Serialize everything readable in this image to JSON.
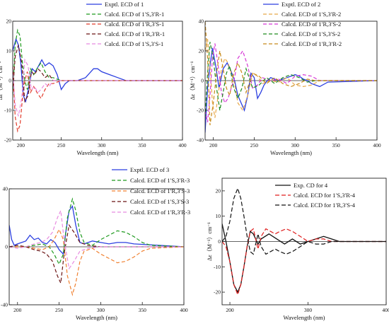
{
  "chart_data": [
    {
      "type": "line",
      "panel": "1",
      "xlabel": "Wavelength (nm)",
      "ylabel": "Δε（M⁻¹）cm⁻¹",
      "xlim": [
        190,
        400
      ],
      "ylim": [
        -20,
        20
      ],
      "xticks": [
        200,
        250,
        300,
        350,
        400
      ],
      "yticks": [
        -20,
        -10,
        0,
        10,
        20
      ],
      "legend_position": "top-right",
      "series": [
        {
          "name": "Exptl. ECD of 1",
          "color": "#2b3fe0",
          "dash": "solid",
          "x": [
            190,
            194,
            197,
            200,
            203,
            206,
            210,
            214,
            218,
            222,
            226,
            230,
            235,
            240,
            245,
            250,
            255,
            260,
            270,
            280,
            290,
            295,
            300,
            310,
            320,
            330,
            340,
            400
          ],
          "y": [
            10,
            14,
            12,
            6,
            -5,
            -7,
            -2,
            4,
            3,
            5,
            7,
            5,
            6,
            5,
            2,
            -3,
            -1,
            0,
            0,
            1,
            4,
            4,
            3,
            2,
            1,
            0,
            0,
            0
          ]
        },
        {
          "name": "Calcd. ECD of 1′S,3′R-1",
          "color": "#1e9a1e",
          "dash": "5,3",
          "x": [
            190,
            193,
            196,
            199,
            202,
            205,
            208,
            212,
            216,
            220,
            225,
            230,
            235,
            240,
            250,
            260,
            280,
            300,
            350,
            400
          ],
          "y": [
            -5,
            12,
            17,
            15,
            6,
            0,
            -3,
            4,
            2,
            4,
            6,
            3,
            1,
            1,
            0,
            0,
            0,
            0,
            0,
            0
          ]
        },
        {
          "name": "Calcd. ECD of 1′R,3′S-1",
          "color": "#e23b2b",
          "dash": "5,3",
          "x": [
            190,
            193,
            196,
            199,
            202,
            205,
            208,
            212,
            216,
            220,
            225,
            230,
            235,
            240,
            250,
            260,
            280,
            300,
            350,
            400
          ],
          "y": [
            5,
            -12,
            -17,
            -15,
            -6,
            0,
            3,
            -4,
            -2,
            -4,
            -6,
            -3,
            -1,
            -1,
            0,
            0,
            0,
            0,
            0,
            0
          ]
        },
        {
          "name": "Calcd. ECD of 1′R,3′R-1",
          "color": "#6b1414",
          "dash": "5,3",
          "x": [
            190,
            193,
            197,
            201,
            205,
            209,
            213,
            217,
            221,
            225,
            230,
            235,
            240,
            250,
            260,
            300,
            400
          ],
          "y": [
            -4,
            8,
            12,
            6,
            -7,
            -5,
            3,
            2,
            4,
            3,
            1,
            2,
            0,
            0,
            0,
            0,
            0
          ]
        },
        {
          "name": "Calcd. ECD of 1′S,3′S-1",
          "color": "#e88be0",
          "dash": "5,3",
          "x": [
            190,
            193,
            197,
            201,
            205,
            209,
            213,
            217,
            221,
            225,
            230,
            235,
            240,
            250,
            260,
            300,
            400
          ],
          "y": [
            4,
            -8,
            -12,
            -6,
            7,
            5,
            -3,
            -2,
            -4,
            -3,
            -1,
            -2,
            0,
            0,
            0,
            0,
            0
          ]
        }
      ]
    },
    {
      "type": "line",
      "panel": "2",
      "xlabel": "Wavelength (nm)",
      "ylabel": "Δε（M⁻¹）cm⁻¹",
      "xlim": [
        190,
        400
      ],
      "ylim": [
        -40,
        40
      ],
      "xticks": [
        200,
        250,
        300,
        350,
        400
      ],
      "yticks": [
        -40,
        -20,
        0,
        20,
        40
      ],
      "legend_position": "top-right",
      "series": [
        {
          "name": "Exptl. ECD of 2",
          "color": "#2b3fe0",
          "dash": "solid",
          "x": [
            190,
            193,
            196,
            199,
            203,
            207,
            212,
            217,
            222,
            226,
            230,
            234,
            238,
            242,
            246,
            250,
            254,
            258,
            262,
            266,
            270,
            280,
            290,
            300,
            305,
            310,
            315,
            320,
            330,
            340,
            400
          ],
          "y": [
            -35,
            -5,
            10,
            22,
            10,
            -5,
            8,
            12,
            6,
            0,
            -10,
            -15,
            -20,
            -10,
            5,
            2,
            -12,
            -8,
            -3,
            0,
            2,
            0,
            2,
            4,
            3,
            1,
            0,
            -2,
            -4,
            -1,
            0
          ]
        },
        {
          "name": "Calcd. ECD of 1′S,3′R-2",
          "color": "#e8a848",
          "dash": "5,3",
          "x": [
            190,
            193,
            196,
            199,
            202,
            206,
            210,
            214,
            218,
            222,
            226,
            230,
            236,
            242,
            248,
            254,
            260,
            270,
            280,
            290,
            300,
            310,
            320,
            330,
            400
          ],
          "y": [
            20,
            28,
            10,
            -15,
            -25,
            -10,
            8,
            15,
            12,
            5,
            -2,
            -15,
            -20,
            -10,
            5,
            3,
            -2,
            0,
            -1,
            2,
            -3,
            -4,
            -3,
            0,
            0
          ]
        },
        {
          "name": "Calcd. ECD of 1′R,3′S-2",
          "color": "#d638d6",
          "dash": "5,3",
          "x": [
            190,
            193,
            196,
            199,
            202,
            206,
            210,
            214,
            218,
            222,
            226,
            230,
            236,
            242,
            248,
            254,
            260,
            270,
            280,
            290,
            300,
            310,
            320,
            330,
            400
          ],
          "y": [
            -20,
            -28,
            -10,
            15,
            25,
            10,
            -8,
            -15,
            -12,
            -5,
            2,
            15,
            20,
            10,
            -5,
            -3,
            2,
            0,
            1,
            -2,
            3,
            4,
            3,
            0,
            0
          ]
        },
        {
          "name": "Calcd. ECD of 1′S,3′S-2",
          "color": "#1e8a1e",
          "dash": "5,3",
          "x": [
            190,
            193,
            196,
            200,
            204,
            208,
            212,
            216,
            220,
            225,
            230,
            235,
            240,
            248,
            256,
            265,
            275,
            285,
            295,
            305,
            315,
            325,
            400
          ],
          "y": [
            -25,
            5,
            26,
            15,
            -5,
            -20,
            -8,
            5,
            10,
            -5,
            -12,
            -5,
            8,
            -5,
            -3,
            2,
            -2,
            2,
            4,
            2,
            -1,
            0,
            0
          ]
        },
        {
          "name": "Calcd. ECD of 1′R,3′R-2",
          "color": "#c88a1a",
          "dash": "5,3",
          "x": [
            190,
            193,
            196,
            200,
            204,
            208,
            212,
            216,
            220,
            225,
            230,
            235,
            240,
            248,
            256,
            265,
            275,
            285,
            295,
            305,
            315,
            325,
            400
          ],
          "y": [
            40,
            15,
            -30,
            -15,
            5,
            20,
            8,
            -5,
            -10,
            5,
            12,
            5,
            -8,
            5,
            3,
            -2,
            2,
            -2,
            -4,
            -2,
            1,
            0,
            0
          ]
        }
      ]
    },
    {
      "type": "line",
      "panel": "3",
      "xlabel": "Wavelength (nm)",
      "ylabel": "Δε（M⁻¹）cm⁻¹",
      "xlim": [
        190,
        400
      ],
      "ylim": [
        -40,
        40
      ],
      "xticks": [
        200,
        250,
        300,
        350,
        400
      ],
      "yticks": [
        -40,
        0,
        40
      ],
      "legend_position": "top-right",
      "series": [
        {
          "name": "Exptl. ECD of 3",
          "color": "#2b3fe0",
          "dash": "solid",
          "x": [
            190,
            193,
            196,
            200,
            205,
            210,
            215,
            220,
            225,
            230,
            235,
            240,
            245,
            250,
            255,
            258,
            262,
            266,
            270,
            275,
            280,
            290,
            300,
            310,
            320,
            330,
            340,
            400
          ],
          "y": [
            15,
            5,
            1,
            2,
            3,
            4,
            8,
            5,
            6,
            3,
            2,
            5,
            3,
            -2,
            -5,
            10,
            25,
            28,
            15,
            3,
            2,
            4,
            3,
            2,
            3,
            3,
            2,
            0
          ]
        },
        {
          "name": "Calcd. ECD of 1′S,3′R-3",
          "color": "#1e9a1e",
          "dash": "5,3",
          "x": [
            190,
            200,
            210,
            220,
            230,
            238,
            244,
            250,
            255,
            260,
            266,
            270,
            275,
            280,
            290,
            300,
            310,
            320,
            330,
            340,
            350,
            360,
            400
          ],
          "y": [
            0,
            0,
            0,
            1,
            2,
            0,
            -5,
            -12,
            -5,
            20,
            33,
            25,
            10,
            3,
            1,
            5,
            8,
            11,
            10,
            7,
            3,
            1,
            0
          ]
        },
        {
          "name": "Calcd. ECD of 1′R,3′S-3",
          "color": "#f08030",
          "dash": "5,3",
          "x": [
            190,
            200,
            210,
            220,
            230,
            238,
            244,
            250,
            255,
            260,
            266,
            270,
            275,
            280,
            290,
            300,
            310,
            320,
            330,
            340,
            350,
            360,
            400
          ],
          "y": [
            0,
            0,
            0,
            -1,
            -2,
            0,
            5,
            12,
            5,
            -20,
            -33,
            -25,
            -10,
            -3,
            -1,
            -5,
            -8,
            -11,
            -10,
            -7,
            -3,
            -1,
            0
          ]
        },
        {
          "name": "Calcd. ECD of 1′S,3′S-3",
          "color": "#6b1414",
          "dash": "5,3",
          "x": [
            190,
            200,
            210,
            220,
            228,
            235,
            242,
            248,
            252,
            256,
            262,
            268,
            275,
            285,
            300,
            400
          ],
          "y": [
            0,
            1,
            0,
            -2,
            -3,
            -5,
            -10,
            -20,
            -25,
            -5,
            15,
            10,
            3,
            1,
            0,
            0
          ]
        },
        {
          "name": "Calcd. ECD of 1′R,3′R-3",
          "color": "#e88be0",
          "dash": "5,3",
          "x": [
            190,
            200,
            210,
            220,
            228,
            235,
            242,
            248,
            252,
            256,
            262,
            268,
            275,
            285,
            300,
            400
          ],
          "y": [
            0,
            -1,
            0,
            2,
            3,
            5,
            10,
            20,
            25,
            5,
            -15,
            -10,
            -3,
            -1,
            0,
            0
          ]
        }
      ]
    },
    {
      "type": "line",
      "panel": "4",
      "xlabel": "Wavelength (nm)",
      "ylabel": "Δε（M⁻¹）cm⁻¹",
      "xlim": [
        190,
        400
      ],
      "ylim": [
        -25,
        25
      ],
      "xticks": [
        200,
        300,
        400
      ],
      "yticks": [
        -20,
        -10,
        0,
        10,
        20
      ],
      "legend_position": "top-right",
      "series": [
        {
          "name": "Exp. CD for 4",
          "color": "#111111",
          "dash": "solid",
          "x": [
            190,
            195,
            200,
            205,
            210,
            214,
            218,
            222,
            226,
            230,
            236,
            240,
            250,
            260,
            270,
            280,
            290,
            300,
            310,
            320,
            330,
            340,
            360,
            400
          ],
          "y": [
            7,
            0,
            -8,
            -17,
            -20,
            -17,
            -10,
            -2,
            4,
            3,
            -1,
            1,
            3,
            1,
            -1,
            1,
            -1,
            0,
            1,
            2,
            1,
            0,
            0,
            0
          ]
        },
        {
          "name": "Calcd. ECD for 1′S,3′R-4",
          "color": "#e01e1e",
          "dash": "6,3",
          "x": [
            190,
            195,
            200,
            205,
            210,
            214,
            218,
            222,
            226,
            230,
            236,
            240,
            246,
            252,
            258,
            264,
            272,
            280,
            290,
            300,
            310,
            320,
            330,
            340,
            360,
            400
          ],
          "y": [
            0,
            -2,
            -8,
            -17,
            -21,
            -17,
            -10,
            -2,
            4,
            5,
            -3,
            2,
            5,
            4,
            3,
            4,
            5,
            4,
            2,
            0,
            1,
            1,
            0,
            0,
            0,
            0
          ]
        },
        {
          "name": "Calcd. ECD for 1′R,3′S-4",
          "color": "#111111",
          "dash": "6,3",
          "x": [
            190,
            195,
            200,
            205,
            210,
            214,
            218,
            222,
            226,
            230,
            236,
            240,
            246,
            252,
            258,
            264,
            272,
            280,
            290,
            300,
            310,
            320,
            330,
            340,
            360,
            400
          ],
          "y": [
            0,
            2,
            8,
            17,
            21,
            17,
            10,
            2,
            -4,
            -5,
            3,
            -2,
            -5,
            -4,
            -3,
            -4,
            -5,
            -4,
            -2,
            0,
            -1,
            -1,
            0,
            0,
            0,
            0
          ]
        }
      ]
    }
  ]
}
